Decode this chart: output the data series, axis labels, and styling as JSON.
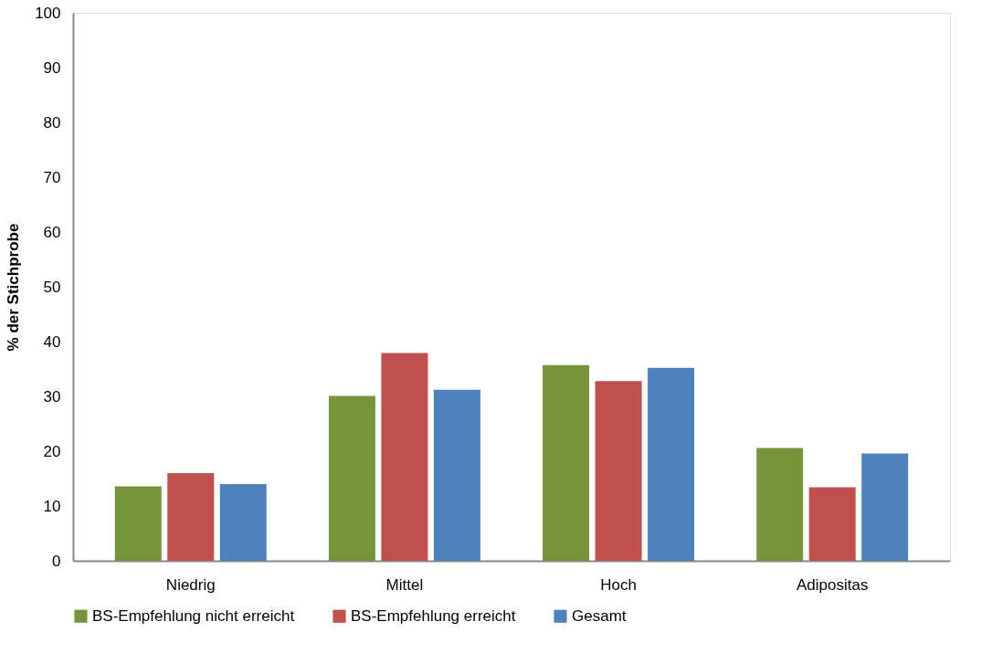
{
  "chart_data": {
    "type": "bar",
    "ylabel": "% der Stichprobe",
    "categories": [
      "Niedrig",
      "Mittel",
      "Hoch",
      "Adipositas"
    ],
    "series": [
      {
        "name": "BS-Empfehlung nicht erreicht",
        "color": "#77933c",
        "values": [
          13.6,
          30.1,
          35.7,
          20.6
        ]
      },
      {
        "name": "BS-Empfehlung erreicht",
        "color": "#c0504d",
        "values": [
          16.0,
          37.9,
          32.8,
          13.4
        ]
      },
      {
        "name": "Gesamt",
        "color": "#4f81bd",
        "values": [
          14.0,
          31.2,
          35.2,
          19.6
        ]
      }
    ],
    "ylim": [
      0,
      100
    ],
    "yticks": [
      0,
      10,
      20,
      30,
      40,
      50,
      60,
      70,
      80,
      90,
      100
    ],
    "grid": false,
    "legend": "bottom"
  }
}
